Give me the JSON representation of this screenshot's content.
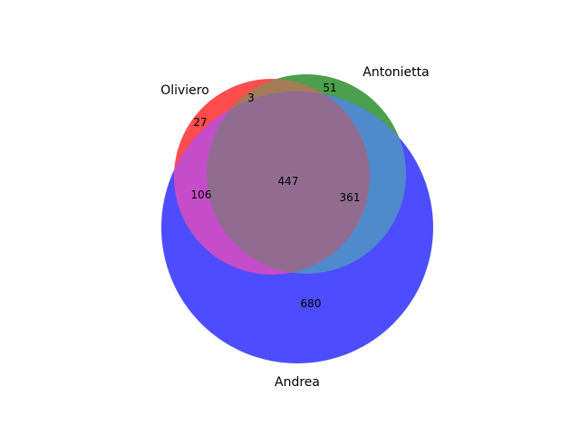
{
  "chart_data": {
    "type": "venn3",
    "sets": [
      {
        "name": "Oliviero",
        "color": "#ff0000"
      },
      {
        "name": "Antonietta",
        "color": "#008000"
      },
      {
        "name": "Andrea",
        "color": "#0000ff"
      }
    ],
    "regions": {
      "only_oliviero": 27,
      "only_antonietta": 51,
      "oliviero_antonietta_only": 3,
      "only_andrea": 680,
      "oliviero_andrea_only": 106,
      "antonietta_andrea_only": 361,
      "all_three": 447
    }
  }
}
